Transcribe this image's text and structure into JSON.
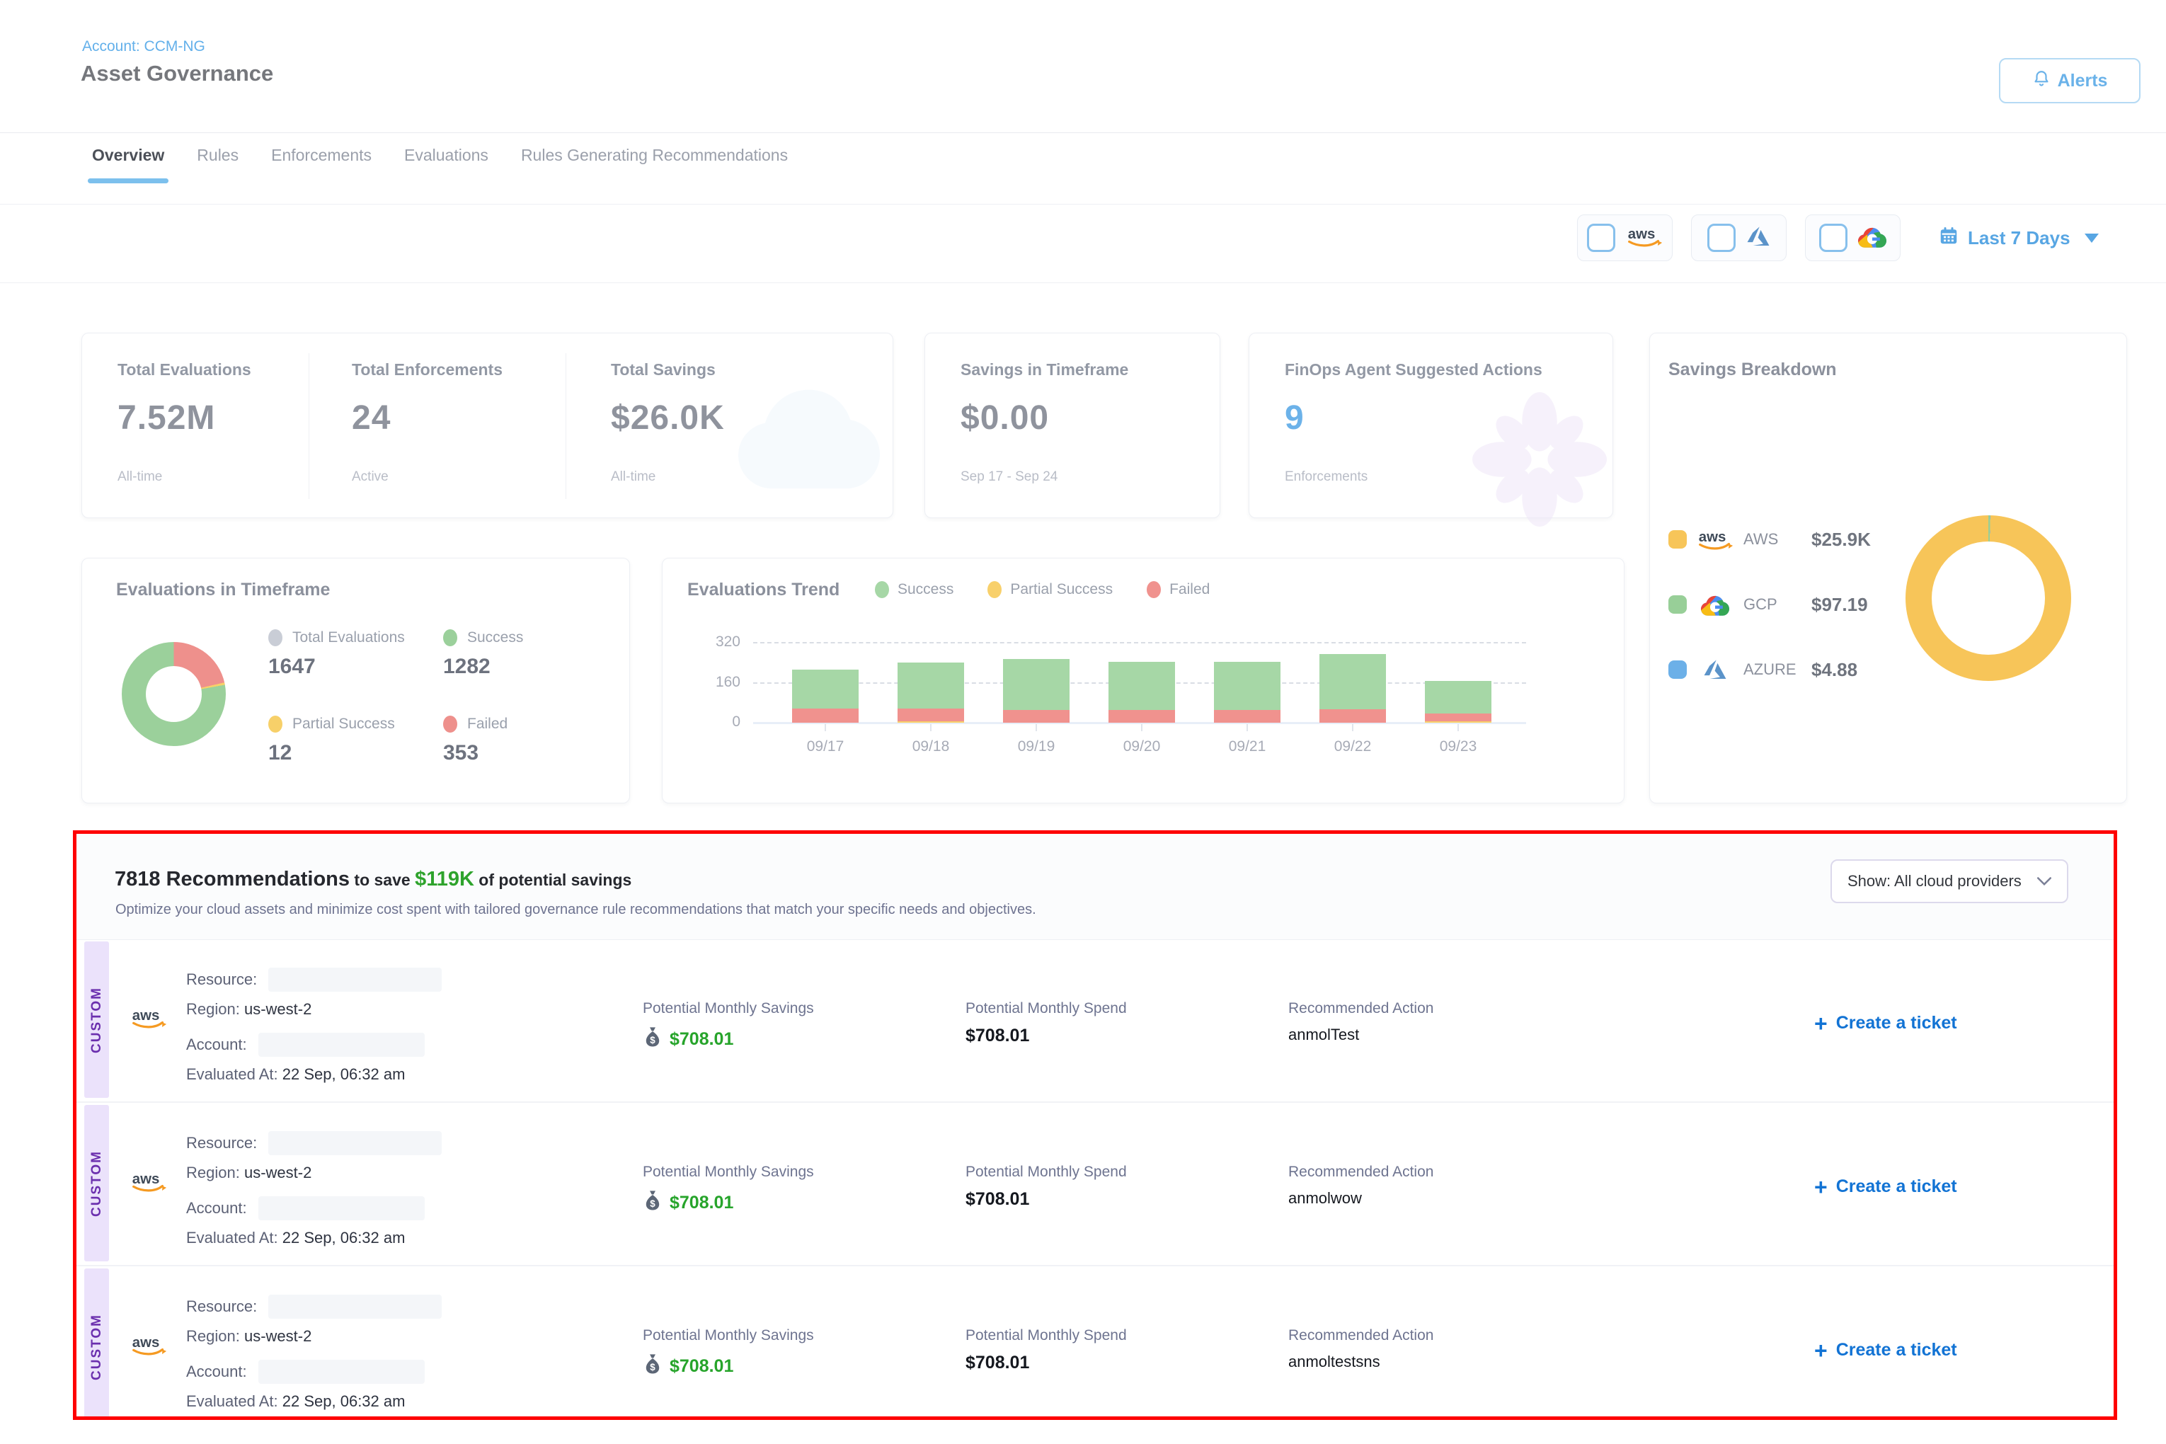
{
  "header": {
    "account": "Account: CCM-NG",
    "title": "Asset Governance",
    "alerts": "Alerts"
  },
  "tabs": {
    "items": [
      "Overview",
      "Rules",
      "Enforcements",
      "Evaluations",
      "Rules Generating Recommendations"
    ],
    "active": "Overview"
  },
  "filter_bar": {
    "providers": [
      {
        "id": "aws",
        "checked": false
      },
      {
        "id": "azure",
        "checked": false
      },
      {
        "id": "gcp",
        "checked": false
      }
    ],
    "date_range": "Last 7 Days"
  },
  "summary_cards": {
    "stats": [
      {
        "label": "Total Evaluations",
        "value": "7.52M",
        "caption": "All-time"
      },
      {
        "label": "Total Enforcements",
        "value": "24",
        "caption": "Active"
      },
      {
        "label": "Total Savings",
        "value": "$26.0K",
        "caption": "All-time"
      }
    ],
    "savings_in_timeframe": {
      "label": "Savings in Timeframe",
      "value": "$0.00",
      "caption": "Sep 17 - Sep 24"
    },
    "finops": {
      "label": "FinOps Agent Suggested Actions",
      "value": "9",
      "caption": "Enforcements",
      "value_color": "#6cb2e9"
    }
  },
  "savings_breakdown": {
    "title": "Savings Breakdown",
    "legend": [
      {
        "provider": "AWS",
        "value": "$25.9K",
        "color": "#f7c559",
        "icon": "aws-icon"
      },
      {
        "provider": "GCP",
        "value": "$97.19",
        "color": "#98cf98",
        "icon": "gcp-icon"
      },
      {
        "provider": "AZURE",
        "value": "$4.88",
        "color": "#6cb0e8",
        "icon": "azure-icon"
      }
    ]
  },
  "evaluations_in_timeframe": {
    "title": "Evaluations in Timeframe",
    "legend": [
      {
        "label": "Total Evaluations",
        "value": "1647",
        "color": "#c9cdd6"
      },
      {
        "label": "Success",
        "value": "1282",
        "color": "#9bd09b"
      },
      {
        "label": "Partial Success",
        "value": "12",
        "color": "#f7d069"
      },
      {
        "label": "Failed",
        "value": "353",
        "color": "#ee908c"
      }
    ]
  },
  "evaluations_trend": {
    "title": "Evaluations Trend",
    "legend": [
      {
        "label": "Success",
        "color": "#a6d7a6"
      },
      {
        "label": "Partial Success",
        "color": "#f8d06b"
      },
      {
        "label": "Failed",
        "color": "#f0928e"
      }
    ]
  },
  "chart_data": [
    {
      "id": "evaluations_timeframe_donut",
      "type": "pie",
      "title": "Evaluations in Timeframe",
      "total_label": "Total Evaluations",
      "total": 1647,
      "segments": [
        {
          "label": "Failed",
          "value": 353,
          "color": "#ee908c"
        },
        {
          "label": "Partial Success",
          "value": 12,
          "color": "#f7d069"
        },
        {
          "label": "Success",
          "value": 1282,
          "color": "#9bd09b"
        }
      ]
    },
    {
      "id": "evaluations_trend_bars",
      "type": "bar",
      "stacked": true,
      "title": "Evaluations Trend",
      "categories": [
        "09/17",
        "09/18",
        "09/19",
        "09/20",
        "09/21",
        "09/22",
        "09/23"
      ],
      "series": [
        {
          "name": "Partial Success",
          "color": "#f8d06b",
          "values": [
            0,
            6,
            0,
            0,
            0,
            0,
            6
          ]
        },
        {
          "name": "Failed",
          "color": "#f0928e",
          "values": [
            58,
            52,
            52,
            52,
            52,
            55,
            32
          ]
        },
        {
          "name": "Success",
          "color": "#a6d7a6",
          "values": [
            155,
            185,
            205,
            193,
            193,
            220,
            131
          ]
        }
      ],
      "ylim": [
        0,
        320
      ],
      "yticks": [
        320,
        160,
        0
      ],
      "grid": "dashed",
      "legend_position": "top"
    },
    {
      "id": "savings_breakdown_donut",
      "type": "pie",
      "title": "Savings Breakdown",
      "segments": [
        {
          "label": "GCP",
          "value": 97.19,
          "color": "#98cf98"
        },
        {
          "label": "AZURE",
          "value": 4.88,
          "color": "#6cb0e8"
        },
        {
          "label": "AWS",
          "value": 25900,
          "color": "#f7c559"
        }
      ],
      "values_display": [
        "$25.9K",
        "$97.19",
        "$4.88"
      ]
    }
  ],
  "recommendations": {
    "heading": {
      "count_bold": "7818 Recommendations",
      "mid": " to save ",
      "savings": "$119K",
      "tail": " of potential savings"
    },
    "subtitle": "Optimize your cloud assets and minimize cost spent with tailored governance rule recommendations that match your specific needs and objectives.",
    "show_filter": "Show: All cloud providers",
    "columns": {
      "savings": "Potential Monthly Savings",
      "spend": "Potential Monthly Spend",
      "action": "Recommended Action"
    },
    "ticket_label": "Create a ticket",
    "row_labels": {
      "resource": "Resource:",
      "region": "Region:",
      "account": "Account:",
      "evaluated": "Evaluated At:"
    },
    "rows": [
      {
        "tag": "CUSTOM",
        "provider": "aws",
        "region": "us-west-2",
        "evaluated": "22 Sep, 06:32 am",
        "savings": "$708.01",
        "spend": "$708.01",
        "action": "anmolTest"
      },
      {
        "tag": "CUSTOM",
        "provider": "aws",
        "region": "us-west-2",
        "evaluated": "22 Sep, 06:32 am",
        "savings": "$708.01",
        "spend": "$708.01",
        "action": "anmolwow"
      },
      {
        "tag": "CUSTOM",
        "provider": "aws",
        "region": "us-west-2",
        "evaluated": "22 Sep, 06:32 am",
        "savings": "$708.01",
        "spend": "$708.01",
        "action": "anmoltestsns"
      }
    ]
  }
}
